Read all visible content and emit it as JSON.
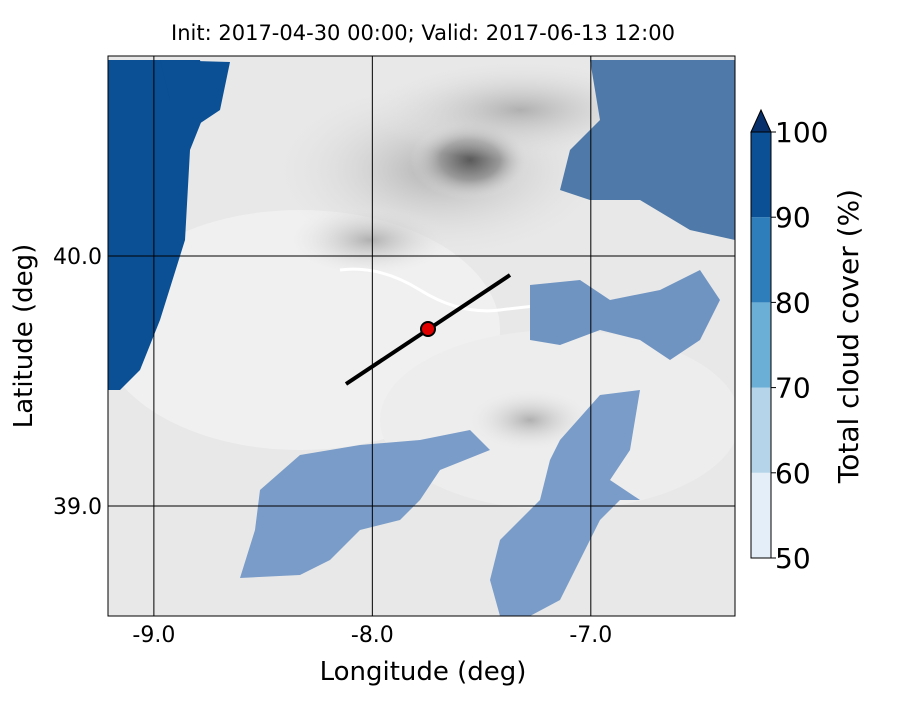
{
  "map": {
    "title": "Init: 2017-04-30 00:00; Valid: 2017-06-13 12:00",
    "xlabel": "Longitude (deg)",
    "ylabel": "Latitude (deg)",
    "xlim": [
      -9.21,
      -6.34
    ],
    "ylim": [
      38.56,
      40.8
    ],
    "xticks": [
      {
        "value": -9,
        "label": "-9.0"
      },
      {
        "value": -8,
        "label": "-8.0"
      },
      {
        "value": -7,
        "label": "-7.0"
      }
    ],
    "yticks": [
      {
        "value": 39,
        "label": "39.0"
      },
      {
        "value": 40,
        "label": "40.0"
      }
    ]
  },
  "colorbar": {
    "label": "Total cloud cover (%)",
    "lim": [
      50,
      100
    ],
    "ticks": [
      50,
      60,
      70,
      80,
      90,
      100
    ],
    "colors": [
      "#e3eef9",
      "#b6d4e9",
      "#6baed6",
      "#2f7ebc",
      "#0b4f94"
    ],
    "extend_color": "#08306b"
  }
}
